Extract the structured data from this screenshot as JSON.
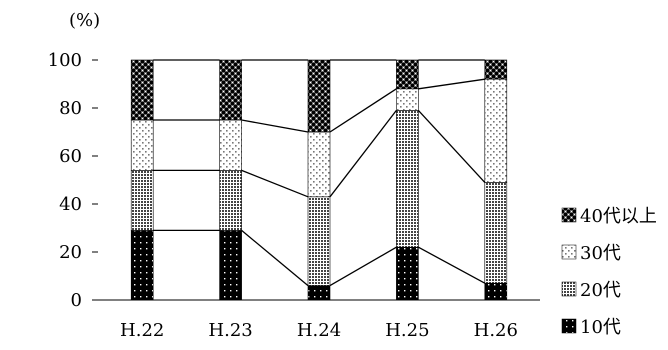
{
  "chart_data": {
    "type": "bar",
    "stacked": "100%",
    "unit_label": "(%)",
    "categories": [
      "H.22",
      "H.23",
      "H.24",
      "H.25",
      "H.26"
    ],
    "y_ticks": [
      "100",
      "80",
      "60",
      "40",
      "20",
      "0"
    ],
    "ylim": [
      0,
      100
    ],
    "series_lines": true,
    "series": [
      {
        "name": "10代",
        "values": [
          29,
          29,
          6,
          22,
          7
        ],
        "pattern": "dots-on-black"
      },
      {
        "name": "20代",
        "values": [
          25,
          25,
          37,
          57,
          42
        ],
        "pattern": "dense-dots"
      },
      {
        "name": "30代",
        "values": [
          21,
          21,
          27,
          9,
          43
        ],
        "pattern": "sparse-dots"
      },
      {
        "name": "40代以上",
        "values": [
          25,
          25,
          30,
          12,
          8
        ],
        "pattern": "checker"
      }
    ],
    "legend": {
      "order": [
        "40代以上",
        "30代",
        "20代",
        "10代"
      ],
      "placement": "right"
    }
  }
}
